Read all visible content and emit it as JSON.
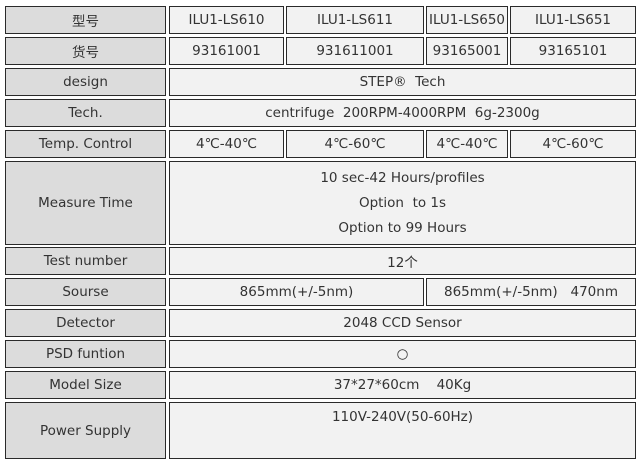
{
  "rows": {
    "model": {
      "label": "型号",
      "values": [
        "ILU1-LS610",
        "ILU1-LS611",
        "ILU1-LS650",
        "ILU1-LS651"
      ]
    },
    "item_no": {
      "label": "货号",
      "values": [
        "93161001",
        "931611001",
        "93165001",
        "93165101"
      ]
    },
    "design": {
      "label": "design",
      "value": "STEP®  Tech"
    },
    "tech": {
      "label": "Tech.",
      "value": "centrifuge  200RPM-4000RPM  6g-2300g"
    },
    "temp": {
      "label": "Temp. Control",
      "values": [
        "4℃-40℃",
        "4℃-60℃",
        "4℃-40℃",
        "4℃-60℃"
      ]
    },
    "measure_time": {
      "label": "Measure Time",
      "lines": [
        "10 sec-42 Hours/profiles",
        "Option  to 1s",
        "Option to 99 Hours"
      ]
    },
    "test_number": {
      "label": "Test number",
      "value": "12个"
    },
    "source": {
      "label": "Sourse",
      "values": [
        "865mm(+/-5nm)",
        "865mm(+/-5nm)   470nm"
      ]
    },
    "detector": {
      "label": "Detector",
      "value": "2048 CCD Sensor"
    },
    "psd": {
      "label": "PSD funtion",
      "value": "○"
    },
    "size": {
      "label": "Model Size",
      "value": "37*27*60cm    40Kg"
    },
    "power": {
      "label": "Power Supply",
      "value": "110V-240V(50-60Hz)"
    }
  }
}
